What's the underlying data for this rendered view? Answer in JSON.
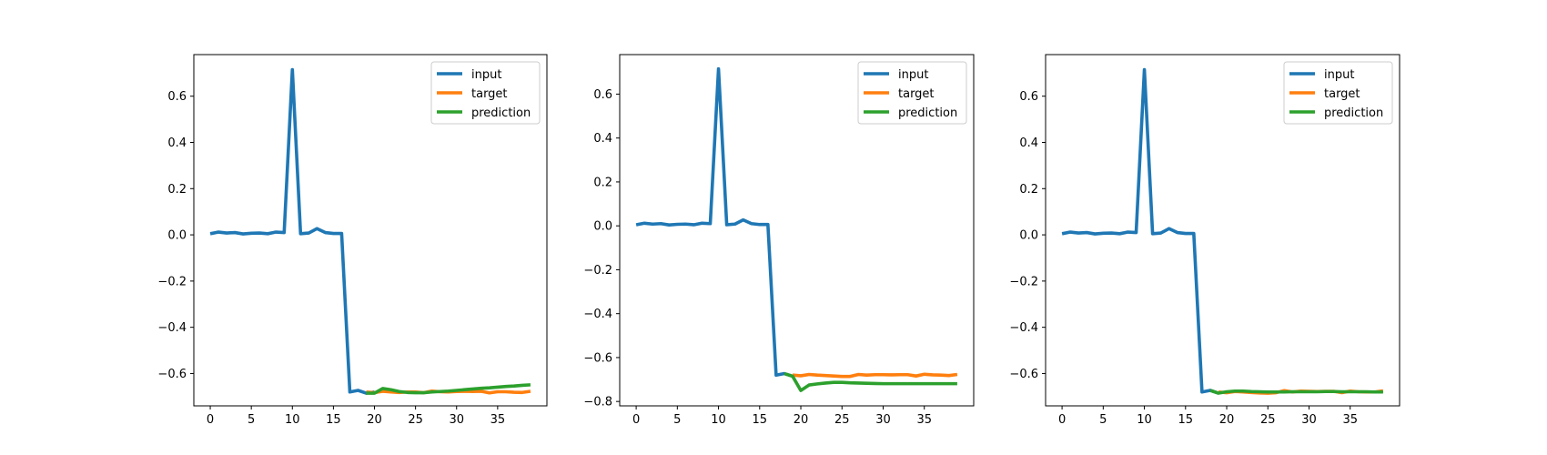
{
  "chart_data": [
    {
      "type": "line",
      "x_ticks": [
        0,
        5,
        10,
        15,
        20,
        25,
        30,
        35
      ],
      "y_ticks": [
        -0.6,
        -0.4,
        -0.2,
        0.0,
        0.2,
        0.4,
        0.6
      ],
      "y_tick_labels": [
        "−0.6",
        "−0.4",
        "−0.2",
        "0.0",
        "0.2",
        "0.4",
        "0.6"
      ],
      "xlim": [
        -2,
        41
      ],
      "ylim": [
        -0.74,
        0.78
      ],
      "legend_position": "upper right",
      "series": [
        {
          "name": "input",
          "color": "#1f77b4",
          "x": [
            0,
            1,
            2,
            3,
            4,
            5,
            6,
            7,
            8,
            9,
            10,
            11,
            12,
            13,
            14,
            15,
            16,
            17,
            18,
            19,
            20
          ],
          "y": [
            0.005,
            0.012,
            0.008,
            0.01,
            0.004,
            0.007,
            0.008,
            0.005,
            0.012,
            0.01,
            0.715,
            0.005,
            0.008,
            0.027,
            0.01,
            0.006,
            0.006,
            -0.68,
            -0.673,
            -0.685,
            -0.68
          ]
        },
        {
          "name": "target",
          "color": "#ff7f0e",
          "x": [
            19,
            20,
            21,
            22,
            23,
            24,
            25,
            26,
            27,
            28,
            29,
            30,
            31,
            32,
            33,
            34,
            35,
            36,
            37,
            38,
            39
          ],
          "y": [
            -0.68,
            -0.683,
            -0.677,
            -0.68,
            -0.682,
            -0.68,
            -0.68,
            -0.683,
            -0.676,
            -0.679,
            -0.68,
            -0.678,
            -0.677,
            -0.678,
            -0.677,
            -0.684,
            -0.679,
            -0.679,
            -0.681,
            -0.682,
            -0.677
          ]
        },
        {
          "name": "prediction",
          "color": "#2ca02c",
          "x": [
            19,
            20,
            21,
            22,
            23,
            24,
            25,
            26,
            27,
            28,
            29,
            30,
            31,
            32,
            33,
            34,
            35,
            36,
            37,
            38,
            39
          ],
          "y": [
            -0.685,
            -0.685,
            -0.665,
            -0.67,
            -0.678,
            -0.682,
            -0.683,
            -0.683,
            -0.68,
            -0.678,
            -0.676,
            -0.673,
            -0.67,
            -0.667,
            -0.664,
            -0.662,
            -0.659,
            -0.656,
            -0.654,
            -0.651,
            -0.649
          ]
        }
      ]
    },
    {
      "type": "line",
      "x_ticks": [
        0,
        5,
        10,
        15,
        20,
        25,
        30,
        35
      ],
      "y_ticks": [
        -0.8,
        -0.6,
        -0.4,
        -0.2,
        0.0,
        0.2,
        0.4,
        0.6
      ],
      "y_tick_labels": [
        "−0.8",
        "−0.6",
        "−0.4",
        "−0.2",
        "0.0",
        "0.2",
        "0.4",
        "0.6"
      ],
      "xlim": [
        -2,
        41
      ],
      "ylim": [
        -0.82,
        0.78
      ],
      "legend_position": "upper right",
      "series": [
        {
          "name": "input",
          "color": "#1f77b4",
          "x": [
            0,
            1,
            2,
            3,
            4,
            5,
            6,
            7,
            8,
            9,
            10,
            11,
            12,
            13,
            14,
            15,
            16,
            17,
            18,
            19
          ],
          "y": [
            0.005,
            0.012,
            0.008,
            0.01,
            0.004,
            0.007,
            0.008,
            0.005,
            0.012,
            0.01,
            0.715,
            0.005,
            0.008,
            0.027,
            0.01,
            0.006,
            0.006,
            -0.68,
            -0.673,
            -0.685
          ]
        },
        {
          "name": "target",
          "color": "#ff7f0e",
          "x": [
            19,
            20,
            21,
            22,
            23,
            24,
            25,
            26,
            27,
            28,
            29,
            30,
            31,
            32,
            33,
            34,
            35,
            36,
            37,
            38,
            39
          ],
          "y": [
            -0.68,
            -0.683,
            -0.677,
            -0.68,
            -0.682,
            -0.684,
            -0.686,
            -0.686,
            -0.677,
            -0.68,
            -0.678,
            -0.678,
            -0.679,
            -0.678,
            -0.678,
            -0.684,
            -0.676,
            -0.679,
            -0.68,
            -0.682,
            -0.677
          ]
        },
        {
          "name": "prediction",
          "color": "#2ca02c",
          "x": [
            18,
            19,
            20,
            21,
            22,
            23,
            24,
            25,
            26,
            27,
            28,
            29,
            30,
            31,
            32,
            33,
            34,
            35,
            36,
            37,
            38,
            39
          ],
          "y": [
            -0.673,
            -0.685,
            -0.75,
            -0.725,
            -0.72,
            -0.716,
            -0.713,
            -0.713,
            -0.715,
            -0.716,
            -0.717,
            -0.718,
            -0.719,
            -0.719,
            -0.719,
            -0.719,
            -0.719,
            -0.719,
            -0.719,
            -0.719,
            -0.719,
            -0.719
          ]
        }
      ]
    },
    {
      "type": "line",
      "x_ticks": [
        0,
        5,
        10,
        15,
        20,
        25,
        30,
        35
      ],
      "y_ticks": [
        -0.6,
        -0.4,
        -0.2,
        0.0,
        0.2,
        0.4,
        0.6
      ],
      "y_tick_labels": [
        "−0.6",
        "−0.4",
        "−0.2",
        "0.0",
        "0.2",
        "0.4",
        "0.6"
      ],
      "xlim": [
        -2,
        41
      ],
      "ylim": [
        -0.74,
        0.78
      ],
      "legend_position": "upper right",
      "series": [
        {
          "name": "input",
          "color": "#1f77b4",
          "x": [
            0,
            1,
            2,
            3,
            4,
            5,
            6,
            7,
            8,
            9,
            10,
            11,
            12,
            13,
            14,
            15,
            16,
            17,
            18,
            19
          ],
          "y": [
            0.005,
            0.012,
            0.008,
            0.01,
            0.004,
            0.007,
            0.008,
            0.005,
            0.012,
            0.01,
            0.715,
            0.005,
            0.008,
            0.027,
            0.01,
            0.006,
            0.006,
            -0.68,
            -0.673,
            -0.685
          ]
        },
        {
          "name": "target",
          "color": "#ff7f0e",
          "x": [
            19,
            20,
            21,
            22,
            23,
            24,
            25,
            26,
            27,
            28,
            29,
            30,
            31,
            32,
            33,
            34,
            35,
            36,
            37,
            38,
            39
          ],
          "y": [
            -0.68,
            -0.683,
            -0.678,
            -0.68,
            -0.682,
            -0.684,
            -0.685,
            -0.683,
            -0.674,
            -0.68,
            -0.676,
            -0.677,
            -0.678,
            -0.677,
            -0.677,
            -0.683,
            -0.676,
            -0.679,
            -0.68,
            -0.68,
            -0.675
          ]
        },
        {
          "name": "prediction",
          "color": "#2ca02c",
          "x": [
            18,
            19,
            20,
            21,
            22,
            23,
            24,
            25,
            26,
            27,
            28,
            29,
            30,
            31,
            32,
            33,
            34,
            35,
            36,
            37,
            38,
            39
          ],
          "y": [
            -0.673,
            -0.685,
            -0.679,
            -0.676,
            -0.676,
            -0.678,
            -0.679,
            -0.68,
            -0.68,
            -0.68,
            -0.679,
            -0.679,
            -0.679,
            -0.679,
            -0.678,
            -0.678,
            -0.679,
            -0.679,
            -0.679,
            -0.679,
            -0.68,
            -0.68
          ]
        }
      ]
    }
  ]
}
